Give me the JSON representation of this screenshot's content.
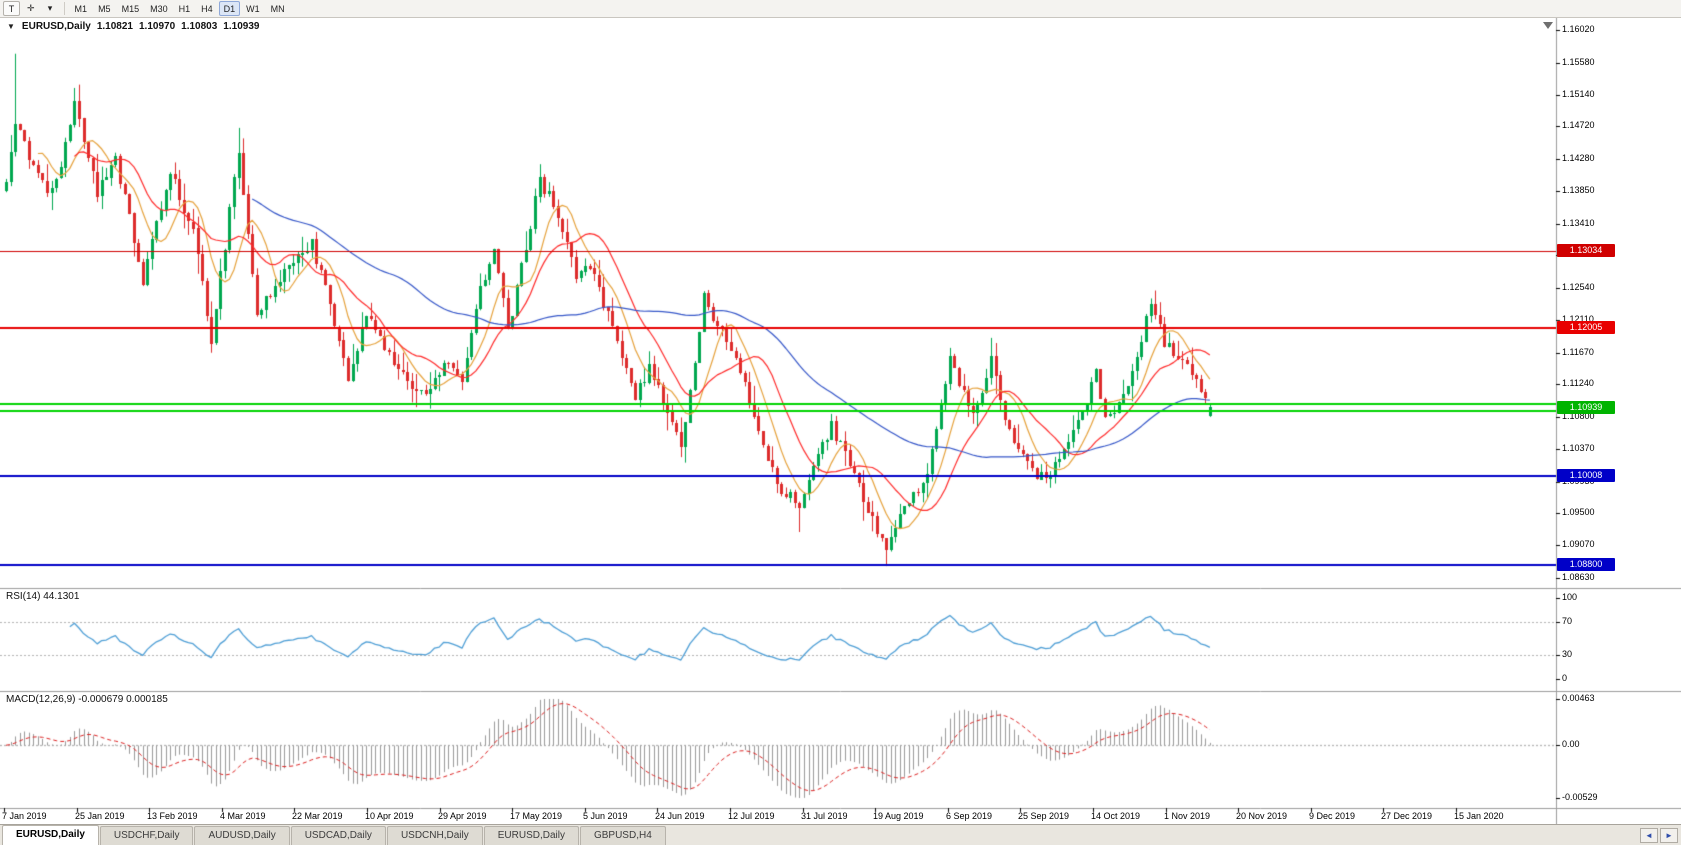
{
  "toolbar": {
    "tool_buttons": [
      {
        "id": "type-tool-button",
        "label": "T"
      },
      {
        "id": "cursor-tool-button",
        "label": "✛"
      },
      {
        "id": "tools-dropdown-button",
        "label": "▾"
      }
    ],
    "timeframes": [
      {
        "label": "M1"
      },
      {
        "label": "M5"
      },
      {
        "label": "M15"
      },
      {
        "label": "M30"
      },
      {
        "label": "H1"
      },
      {
        "label": "H4"
      },
      {
        "label": "D1",
        "active": true
      },
      {
        "label": "W1"
      },
      {
        "label": "MN"
      }
    ]
  },
  "chart": {
    "title_symbol": "EURUSD,Daily",
    "ohlc": {
      "open": "1.10821",
      "high": "1.10970",
      "low": "1.10803",
      "close": "1.10939"
    },
    "rsi_label": "RSI(14) 44.1301",
    "macd_label": "MACD(12,26,9) -0.000679 0.000185"
  },
  "chart_data": {
    "type": "candlestick+indicators",
    "symbol": "EURUSD",
    "timeframe": "Daily",
    "bars_count": 265,
    "ylim": [
      1.0863,
      1.1602
    ],
    "price_ticks": [
      "1.16020",
      "1.15580",
      "1.15140",
      "1.14720",
      "1.14280",
      "1.13850",
      "1.13410",
      "1.12980",
      "1.12540",
      "1.12110",
      "1.11670",
      "1.11240",
      "1.10800",
      "1.10370",
      "1.09930",
      "1.09500",
      "1.09070",
      "1.08630"
    ],
    "date_labels": [
      "7 Jan 2019",
      "25 Jan 2019",
      "13 Feb 2019",
      "4 Mar 2019",
      "22 Mar 2019",
      "10 Apr 2019",
      "29 Apr 2019",
      "17 May 2019",
      "5 Jun 2019",
      "24 Jun 2019",
      "12 Jul 2019",
      "31 Jul 2019",
      "19 Aug 2019",
      "6 Sep 2019",
      "25 Sep 2019",
      "14 Oct 2019",
      "1 Nov 2019",
      "20 Nov 2019",
      "9 Dec 2019",
      "27 Dec 2019",
      "15 Jan 2020"
    ],
    "waypoints": [
      [
        0,
        1.14
      ],
      [
        2,
        1.148
      ],
      [
        5,
        1.143
      ],
      [
        9,
        1.138
      ],
      [
        12,
        1.142
      ],
      [
        15,
        1.15
      ],
      [
        20,
        1.1385
      ],
      [
        24,
        1.143
      ],
      [
        30,
        1.1265
      ],
      [
        36,
        1.141
      ],
      [
        41,
        1.133
      ],
      [
        45,
        1.1185
      ],
      [
        51,
        1.144
      ],
      [
        55,
        1.1215
      ],
      [
        61,
        1.128
      ],
      [
        67,
        1.1315
      ],
      [
        71,
        1.123
      ],
      [
        75,
        1.1125
      ],
      [
        79,
        1.1215
      ],
      [
        84,
        1.116
      ],
      [
        91,
        1.111
      ],
      [
        96,
        1.115
      ],
      [
        100,
        1.113
      ],
      [
        104,
        1.125
      ],
      [
        107,
        1.1315
      ],
      [
        110,
        1.1195
      ],
      [
        117,
        1.14
      ],
      [
        121,
        1.1355
      ],
      [
        125,
        1.127
      ],
      [
        128,
        1.1285
      ],
      [
        132,
        1.122
      ],
      [
        138,
        1.1105
      ],
      [
        141,
        1.1145
      ],
      [
        148,
        1.104
      ],
      [
        153,
        1.124
      ],
      [
        160,
        1.116
      ],
      [
        165,
        1.106
      ],
      [
        169,
        1.0985
      ],
      [
        174,
        1.0965
      ],
      [
        181,
        1.107
      ],
      [
        186,
        1.1
      ],
      [
        193,
        1.0895
      ],
      [
        196,
        1.095
      ],
      [
        202,
        1.1
      ],
      [
        207,
        1.116
      ],
      [
        212,
        1.108
      ],
      [
        216,
        1.116
      ],
      [
        220,
        1.106
      ],
      [
        225,
        1.1005
      ],
      [
        228,
        1.0995
      ],
      [
        231,
        1.102
      ],
      [
        236,
        1.108
      ],
      [
        239,
        1.114
      ],
      [
        241,
        1.108
      ],
      [
        243,
        1.1085
      ],
      [
        246,
        1.112
      ],
      [
        251,
        1.1235
      ],
      [
        254,
        1.118
      ],
      [
        257,
        1.116
      ],
      [
        261,
        1.113
      ],
      [
        263,
        1.1105
      ],
      [
        264,
        1.10939
      ]
    ],
    "wick_events": [
      {
        "i": 2,
        "type": "high",
        "price": 1.157
      },
      {
        "i": 51,
        "type": "high",
        "price": 1.147
      },
      {
        "i": 148,
        "type": "low",
        "price": 1.1026
      },
      {
        "i": 174,
        "type": "low",
        "price": 1.0925
      },
      {
        "i": 193,
        "type": "low",
        "price": 1.0879
      },
      {
        "i": 251,
        "type": "high",
        "price": 1.124
      }
    ],
    "last_bar": {
      "open": 1.10821,
      "high": 1.1097,
      "low": 1.10803,
      "close": 1.10939
    },
    "levels": [
      {
        "price": 1.13034,
        "color": "#d00000",
        "width": 1,
        "tag": "1.13034",
        "tag_color": "#d00000"
      },
      {
        "price": 1.12005,
        "color": "#e80000",
        "width": 2,
        "tag": "1.12005",
        "tag_color": "#e80000"
      },
      {
        "price": 1.1097,
        "color": "#00d400",
        "width": 2,
        "tag": null
      },
      {
        "price": 1.1088,
        "color": "#00d400",
        "width": 2,
        "tag": "1.10939",
        "tag_color": "#00b400",
        "tag_price": 1.10925
      },
      {
        "price": 1.10008,
        "color": "#0000c8",
        "width": 2,
        "tag": "1.10008",
        "tag_color": "#0000c8"
      },
      {
        "price": 1.088,
        "color": "#0000c8",
        "width": 2,
        "tag": "1.08800",
        "tag_color": "#0000c8"
      }
    ],
    "moving_averages": [
      {
        "period": 8,
        "color": "#e6a23c"
      },
      {
        "period": 16,
        "color": "#ff2a2a"
      },
      {
        "period": 55,
        "color": "#3657c9"
      }
    ],
    "indicators": {
      "rsi": {
        "period": 14,
        "current": "44.1301",
        "overbought": 70,
        "oversold": 30,
        "color": "#4f9fd6",
        "axis": [
          {
            "label": "100",
            "value": 100
          },
          {
            "label": "70",
            "value": 70
          },
          {
            "label": "30",
            "value": 30
          },
          {
            "label": "0",
            "value": 0
          }
        ]
      },
      "macd": {
        "fast": 12,
        "slow": 26,
        "signal": 9,
        "macd_current": "-0.000679",
        "signal_current": "0.000185",
        "hist_color": "#9a9a9a",
        "signal_color": "#dd2222",
        "axis": [
          {
            "label": "0.00463",
            "value": 0.00463
          },
          {
            "label": "0.00",
            "value": 0
          },
          {
            "label": "-0.00529",
            "value": -0.00529
          }
        ]
      }
    },
    "candle_colors": {
      "up": "#00a84f",
      "down": "#dd2c2c"
    }
  },
  "tabs": [
    {
      "label": "EURUSD,Daily",
      "active": true
    },
    {
      "label": "USDCHF,Daily"
    },
    {
      "label": "AUDUSD,Daily"
    },
    {
      "label": "USDCAD,Daily"
    },
    {
      "label": "USDCNH,Daily"
    },
    {
      "label": "EURUSD,Daily"
    },
    {
      "label": "GBPUSD,H4"
    }
  ],
  "tab_scroll": {
    "left": "◄",
    "right": "►"
  }
}
